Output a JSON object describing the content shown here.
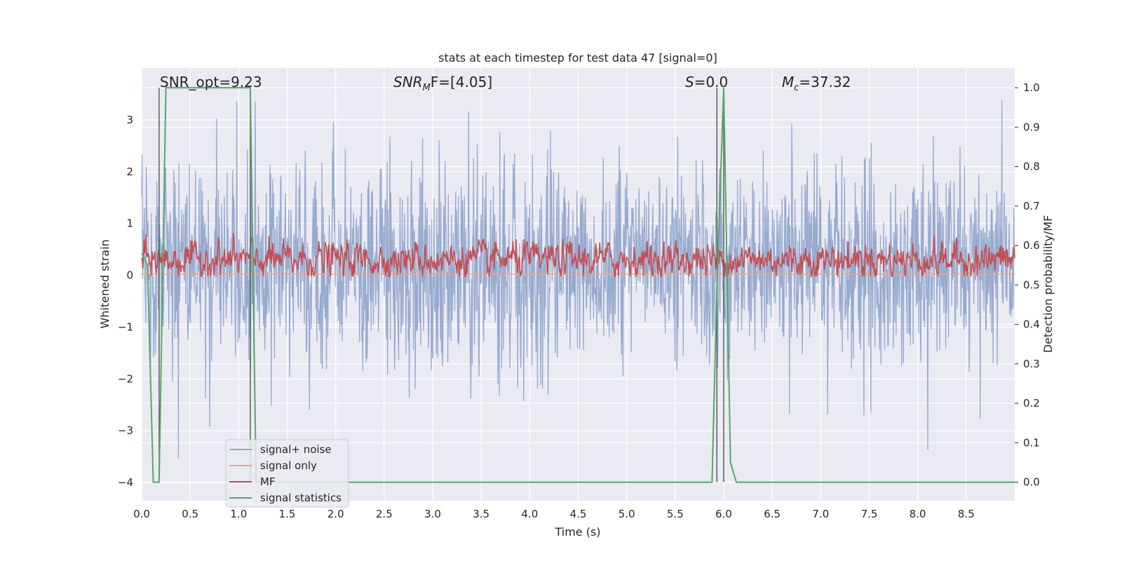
{
  "chart_data": {
    "type": "line",
    "title": "stats at each timestep for test data 47 [signal=0]",
    "xlabel": "Time (s)",
    "ylabel": "Whitened strain",
    "ylabel_right": "Detection probability/MF",
    "xlim": [
      0.0,
      9.0
    ],
    "ylim": [
      -4.35,
      4.0
    ],
    "ylim_right": [
      -0.047,
      1.05
    ],
    "x_ticks": [
      "0.0",
      "0.5",
      "1.0",
      "1.5",
      "2.0",
      "2.5",
      "3.0",
      "3.5",
      "4.0",
      "4.5",
      "5.0",
      "5.5",
      "6.0",
      "6.5",
      "7.0",
      "7.5",
      "8.0",
      "8.5"
    ],
    "y_ticks": [
      "3",
      "2",
      "1",
      "0",
      "−1",
      "−2",
      "−3",
      "−4"
    ],
    "y_ticks_right": [
      "1.0",
      "0.9",
      "0.8",
      "0.7",
      "0.6",
      "0.5",
      "0.4",
      "0.3",
      "0.2",
      "0.1",
      "0.0"
    ],
    "annotations": {
      "snr_opt": "SNR_opt=9.23",
      "snr_mf_prefix": "SNR",
      "snr_mf_sub": "M",
      "snr_mf_suffix": "F=[4.05]",
      "s_prefix": "S",
      "s_suffix": "=0.0",
      "mc_prefix": "M",
      "mc_sub": "c",
      "mc_suffix": "=37.32"
    },
    "vertical_lines_x": [
      0.18,
      1.12,
      5.93,
      6.0
    ],
    "series": [
      {
        "name": "signal+ noise",
        "color": "#92a6cc",
        "axis": "left",
        "description": "noise band approx mean 0, typical range -1.8 to 2.3, extremes -4.0 to 3.6"
      },
      {
        "name": "signal only",
        "color": "#eea388",
        "axis": "left",
        "x": [
          0.0,
          9.0
        ],
        "values": [
          0.02,
          0.02
        ]
      },
      {
        "name": "MF",
        "color": "#c44e52",
        "axis": "left",
        "description": "fluctuates around 0.3, range approx 0.0 to 1.0"
      },
      {
        "name": "signal statistics",
        "color": "#55a868",
        "axis": "right",
        "x": [
          0.0,
          0.06,
          0.12,
          0.18,
          0.25,
          0.35,
          1.0,
          1.12,
          1.18,
          1.25,
          5.5,
          5.88,
          5.93,
          6.0,
          6.07,
          6.13,
          9.0
        ],
        "values": [
          0.58,
          0.55,
          0.0,
          0.0,
          1.0,
          1.0,
          1.0,
          1.0,
          0.0,
          0.0,
          0.0,
          0.0,
          0.5,
          1.0,
          0.05,
          0.0,
          0.0
        ]
      }
    ],
    "legend": {
      "position": "lower-left",
      "entries": [
        "signal+ noise",
        "signal only",
        "MF",
        "signal statistics"
      ]
    },
    "grid": true
  }
}
